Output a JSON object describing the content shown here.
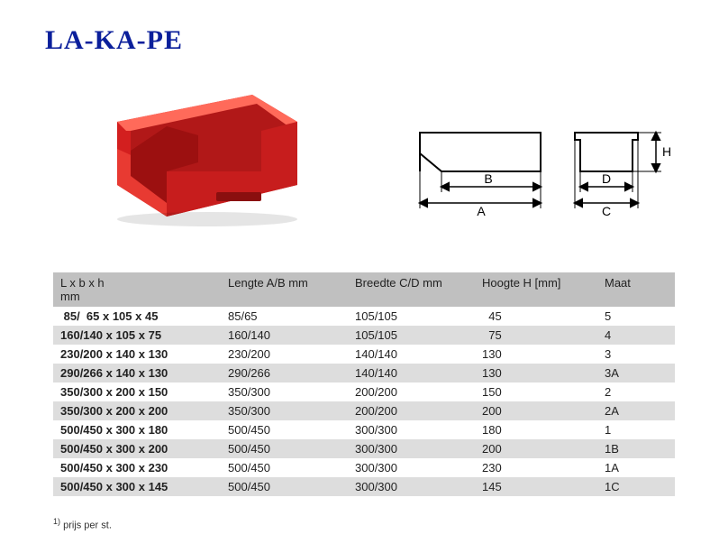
{
  "logo": "LA-KA-PE",
  "table": {
    "headers": {
      "lbh": "L x b x h\nmm",
      "ab": "Lengte A/B mm",
      "cd": "Breedte C/D mm",
      "h": "Hoogte H [mm]",
      "maat": "Maat"
    },
    "rows": [
      {
        "lbh": " 85/  65 x 105 x 45",
        "ab": "85/65",
        "cd": "105/105",
        "h": "  45",
        "maat": "5"
      },
      {
        "lbh": "160/140 x 105 x 75",
        "ab": "160/140",
        "cd": "105/105",
        "h": "  75",
        "maat": "4"
      },
      {
        "lbh": "230/200 x 140 x 130",
        "ab": "230/200",
        "cd": "140/140",
        "h": "130",
        "maat": "3"
      },
      {
        "lbh": "290/266 x 140 x 130",
        "ab": "290/266",
        "cd": "140/140",
        "h": "130",
        "maat": "3A"
      },
      {
        "lbh": "350/300 x 200 x 150",
        "ab": "350/300",
        "cd": "200/200",
        "h": "150",
        "maat": "2"
      },
      {
        "lbh": "350/300 x 200 x 200",
        "ab": "350/300",
        "cd": "200/200",
        "h": "200",
        "maat": "2A"
      },
      {
        "lbh": "500/450 x 300 x 180",
        "ab": "500/450",
        "cd": "300/300",
        "h": "180",
        "maat": "1"
      },
      {
        "lbh": "500/450 x 300 x 200",
        "ab": "500/450",
        "cd": "300/300",
        "h": "200",
        "maat": "1B"
      },
      {
        "lbh": "500/450 x 300 x 230",
        "ab": "500/450",
        "cd": "300/300",
        "h": "230",
        "maat": "1A"
      },
      {
        "lbh": "500/450 x 300 x 145",
        "ab": "500/450",
        "cd": "300/300",
        "h": "145",
        "maat": "1C"
      }
    ]
  },
  "footnote": "prijs per st.",
  "footnote_marker": "1)",
  "colors": {
    "logo": "#0b1f9b",
    "header_bg": "#c0c0c0",
    "row_odd_bg": "#dddddd",
    "row_even_bg": "#ffffff",
    "product_red": "#d31f1f",
    "product_highlight": "#ff6a5a",
    "product_shadow": "#8a0f0f"
  },
  "diagram_labels": {
    "A": "A",
    "B": "B",
    "C": "C",
    "D": "D",
    "H": "H"
  }
}
